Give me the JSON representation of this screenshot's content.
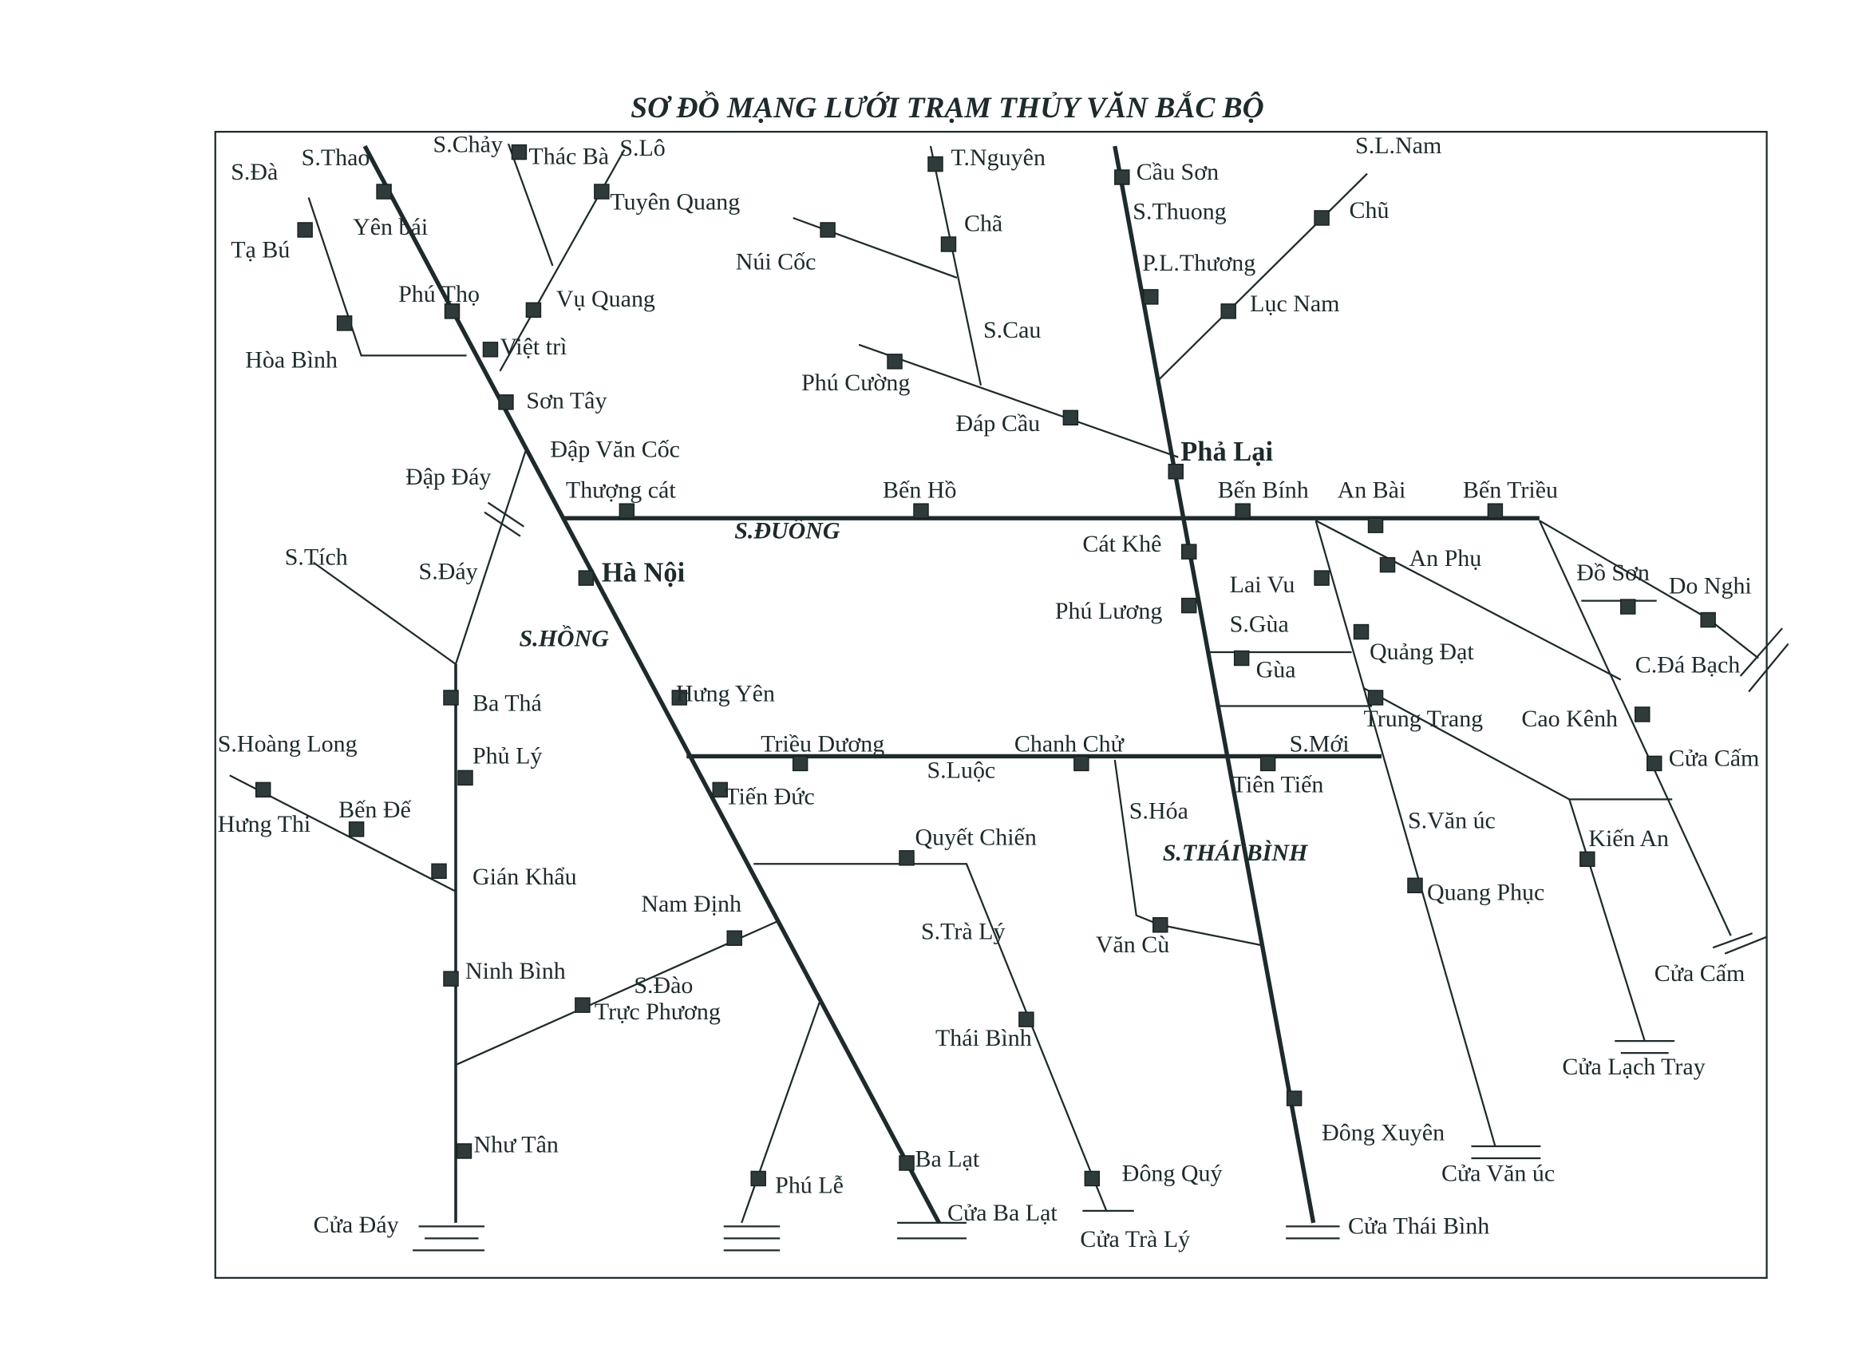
{
  "title": "SƠ ĐỒ MẠNG LƯỚI TRẠM THỦY VĂN BẮC BỘ",
  "colors": {
    "line": "#1e2a2c",
    "station": "#2f3b3a",
    "background": "#ffffff"
  },
  "stations": [
    {
      "name": "Yên bái"
    },
    {
      "name": "Tạ Bú"
    },
    {
      "name": "Hòa Bình"
    },
    {
      "name": "Phú Thọ"
    },
    {
      "name": "Vụ Quang"
    },
    {
      "name": "Việt trì"
    },
    {
      "name": "Sơn Tây"
    },
    {
      "name": "Thác Bà"
    },
    {
      "name": "Tuyên Quang"
    },
    {
      "name": "T.Nguyên"
    },
    {
      "name": "Chã"
    },
    {
      "name": "Núi Cốc"
    },
    {
      "name": "Phú Cường"
    },
    {
      "name": "Đáp Cầu"
    },
    {
      "name": "Cầu Sơn"
    },
    {
      "name": "P.L.Thương"
    },
    {
      "name": "Lục Nam"
    },
    {
      "name": "Chũ"
    },
    {
      "name": "Phả Lại"
    },
    {
      "name": "Thượng cát"
    },
    {
      "name": "Bến Hồ"
    },
    {
      "name": "Bến Bính"
    },
    {
      "name": "An Bài"
    },
    {
      "name": "Bến Triều"
    },
    {
      "name": "Cát Khê"
    },
    {
      "name": "Hà Nội"
    },
    {
      "name": "Phú Lương"
    },
    {
      "name": "Lai Vu"
    },
    {
      "name": "An Phụ"
    },
    {
      "name": "Đồ Sơn"
    },
    {
      "name": "Do Nghi"
    },
    {
      "name": "Quảng Đạt"
    },
    {
      "name": "Gùa"
    },
    {
      "name": "Trung Trang"
    },
    {
      "name": "Cao Kênh"
    },
    {
      "name": "Cửa Cấm"
    },
    {
      "name": "Ba Thá"
    },
    {
      "name": "Hưng Yên"
    },
    {
      "name": "Phủ Lý"
    },
    {
      "name": "Triều Dương"
    },
    {
      "name": "Chanh Chử"
    },
    {
      "name": "Tiên Tiến"
    },
    {
      "name": "Tiến Đức"
    },
    {
      "name": "Hưng Thi"
    },
    {
      "name": "Bến Đế"
    },
    {
      "name": "Gián Khẩu"
    },
    {
      "name": "Quyết Chiến"
    },
    {
      "name": "Kiến An"
    },
    {
      "name": "Quang Phục"
    },
    {
      "name": "Nam Định"
    },
    {
      "name": "Văn Cù"
    },
    {
      "name": "Ninh Bình"
    },
    {
      "name": "Trực Phương"
    },
    {
      "name": "Thái Bình"
    },
    {
      "name": "Đông Xuyên"
    },
    {
      "name": "Như Tân"
    },
    {
      "name": "Ba Lạt"
    },
    {
      "name": "Phú Lễ"
    },
    {
      "name": "Đông Quý"
    }
  ],
  "rivers": [
    {
      "name": "S.Đà"
    },
    {
      "name": "S.Thao"
    },
    {
      "name": "S.Chảy"
    },
    {
      "name": "S.Lô"
    },
    {
      "name": "S.Cau"
    },
    {
      "name": "S.L.Nam"
    },
    {
      "name": "S.Thuong"
    },
    {
      "name": "Đập Văn Cốc"
    },
    {
      "name": "Đập Đáy"
    },
    {
      "name": "S.ĐUỐNG"
    },
    {
      "name": "S.Tích"
    },
    {
      "name": "S.Đáy"
    },
    {
      "name": "S.HỒNG"
    },
    {
      "name": "S.Hoàng Long"
    },
    {
      "name": "S.Gùa"
    },
    {
      "name": "C.Đá Bạch"
    },
    {
      "name": "S.Mới"
    },
    {
      "name": "S.Luộc"
    },
    {
      "name": "S.Hóa"
    },
    {
      "name": "S.THÁI BÌNH"
    },
    {
      "name": "S.Văn úc"
    },
    {
      "name": "S.Trà Lý"
    },
    {
      "name": "Cửa Cấm"
    },
    {
      "name": "S.Đào"
    },
    {
      "name": "Cửa Lạch Tray"
    },
    {
      "name": "Cửa Văn úc"
    },
    {
      "name": "Cửa Ba Lạt"
    },
    {
      "name": "Cửa Đáy"
    },
    {
      "name": "Cửa Thái Bình"
    },
    {
      "name": "Cửa Trà Lý"
    }
  ]
}
